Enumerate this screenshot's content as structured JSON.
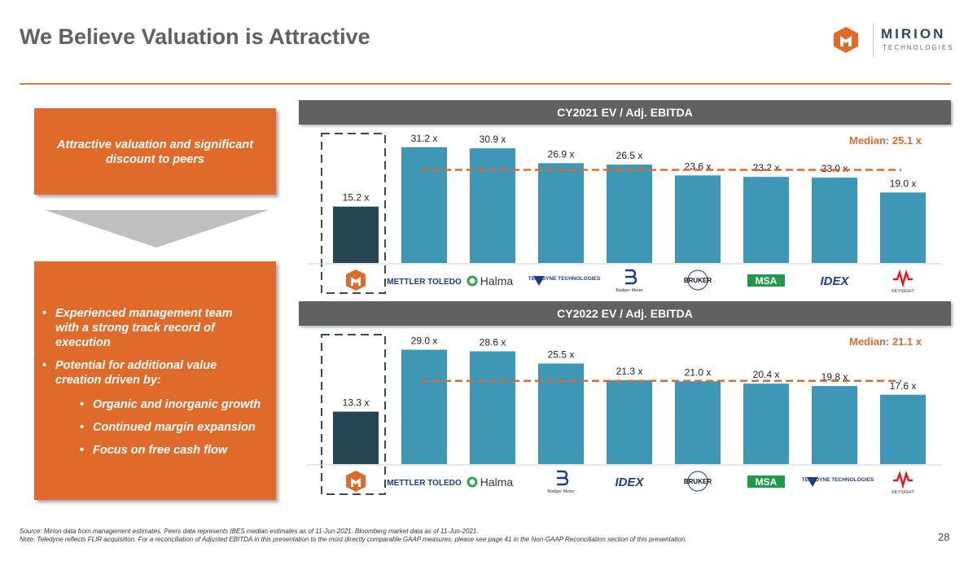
{
  "title": "We Believe Valuation is Attractive",
  "logo": {
    "name": "MIRION",
    "sub": "TECHNOLOGIES"
  },
  "left_panel": {
    "headline": "Attractive valuation and significant discount to peers",
    "bullets": [
      "Experienced management team with a strong track record of execution",
      "Potential for additional value creation driven by:"
    ],
    "sub_bullets": [
      "Organic and inorganic growth",
      "Continued margin expansion",
      "Focus on free cash flow"
    ]
  },
  "colors": {
    "mirion_bar": "#264653",
    "peer_bar": "#3d97b5",
    "median_line": "#e06a2a",
    "orange": "#e06a2a",
    "header_gray": "#5f6163"
  },
  "chart_data": [
    {
      "type": "bar",
      "title": "CY2021 EV / Adj. EBITDA",
      "categories": [
        "Mirion",
        "Mettler Toledo",
        "Halma",
        "Teledyne Technologies",
        "Badger Meter",
        "Bruker",
        "MSA",
        "IDEX",
        "Keysight"
      ],
      "values": [
        15.2,
        31.2,
        30.9,
        26.9,
        26.5,
        23.6,
        23.2,
        23.0,
        19.0
      ],
      "labels": [
        "15.2 x",
        "31.2 x",
        "30.9 x",
        "26.9 x",
        "26.5 x",
        "23.6 x",
        "23.2 x",
        "23.0 x",
        "19.0 x"
      ],
      "median": 25.1,
      "median_label": "Median: 25.1 x",
      "ylim": [
        0,
        34
      ]
    },
    {
      "type": "bar",
      "title": "CY2022 EV / Adj. EBITDA",
      "categories": [
        "Mirion",
        "Mettler Toledo",
        "Halma",
        "Badger Meter",
        "IDEX",
        "Bruker",
        "MSA",
        "Teledyne Technologies",
        "Keysight"
      ],
      "values": [
        13.3,
        29.0,
        28.6,
        25.5,
        21.3,
        21.0,
        20.4,
        19.8,
        17.6
      ],
      "labels": [
        "13.3 x",
        "29.0 x",
        "28.6 x",
        "25.5 x",
        "21.3 x",
        "21.0 x",
        "20.4 x",
        "19.8 x",
        "17.6 x"
      ],
      "median": 21.1,
      "median_label": "Median: 21.1 x",
      "ylim": [
        0,
        32
      ]
    }
  ],
  "peer_logos": {
    "mettler": "METTLER TOLEDO",
    "halma": "Halma",
    "teledyne": "TELEDYNE TECHNOLOGIES",
    "badger": "Badger Meter",
    "bruker": "BRUKER",
    "msa": "MSA",
    "idex": "IDEX",
    "keysight": "KEYSIGHT"
  },
  "footnotes": [
    "Source: Mirion data from management estimates. Peers data represents IBES median estimates as of 11-Jun-2021. Bloomberg market data as of 11-Jun-2021.",
    "Note: Teledyne reflects FLIR acquisition. For a reconciliation of Adjusted EBITDA in this presentation to the most directly comparable GAAP measures, please see page 41 in the Non-GAAP Reconciliation section of this presentation."
  ],
  "page_number": "28"
}
